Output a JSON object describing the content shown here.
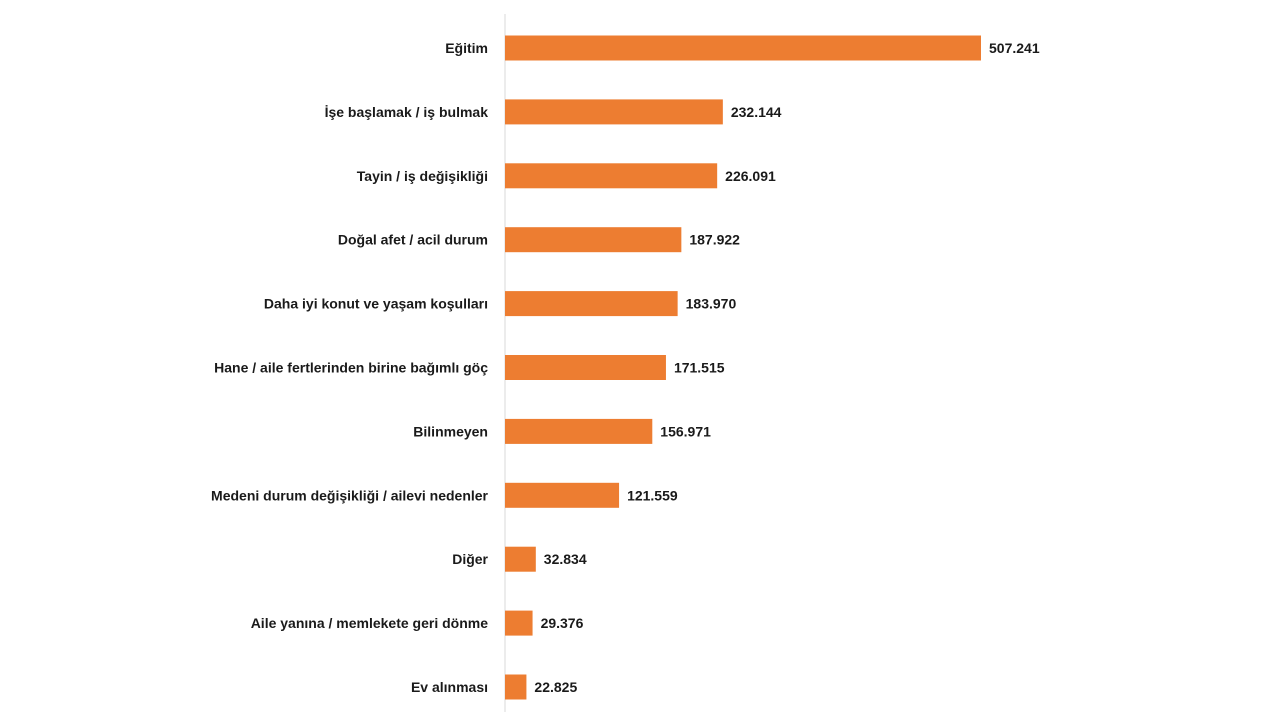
{
  "chart_data": {
    "type": "bar",
    "orientation": "horizontal",
    "categories": [
      "Eğitim",
      "İşe başlamak / iş bulmak",
      "Tayin / iş değişikliği",
      "Doğal afet / acil durum",
      "Daha iyi konut ve yaşam koşulları",
      "Hane / aile fertlerinden birine bağımlı göç",
      "Bilinmeyen",
      "Medeni durum değişikliği / ailevi nedenler",
      "Diğer",
      "Aile yanına / memlekete geri dönme",
      "Ev alınması"
    ],
    "values": [
      507241,
      232144,
      226091,
      187922,
      183970,
      171515,
      156971,
      121559,
      32834,
      29376,
      22825
    ],
    "value_labels": [
      "507.241",
      "232.144",
      "226.091",
      "187.922",
      "183.970",
      "171.515",
      "156.971",
      "121.559",
      "32.834",
      "29.376",
      "22.825"
    ],
    "bar_color": "#ED7D31",
    "axis_color": "#D9D9D9",
    "grid": false,
    "legend": "none",
    "xlim": [
      0,
      507241
    ]
  }
}
